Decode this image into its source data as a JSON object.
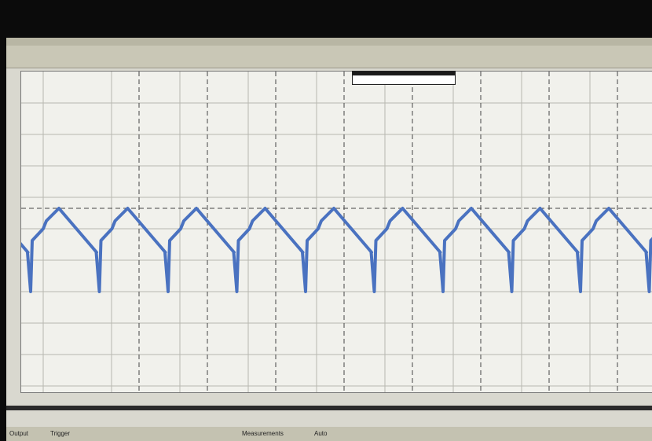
{
  "status_bar": {
    "output": "Output",
    "trigger": "Trigger",
    "measurements": "Measurements",
    "auto": "Auto"
  }
}
